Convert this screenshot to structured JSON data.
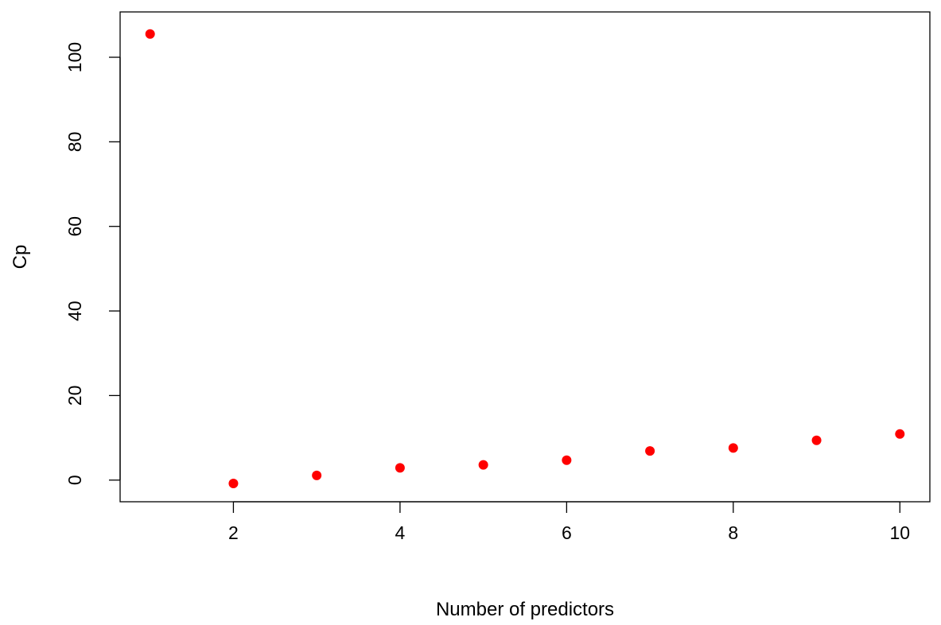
{
  "chart_data": {
    "type": "scatter",
    "title": "",
    "xlabel": "Number of predictors",
    "ylabel": "Cp",
    "xlim": [
      0.64,
      10.36
    ],
    "ylim": [
      -5.12,
      110.72
    ],
    "xticks": [
      2,
      4,
      6,
      8,
      10
    ],
    "yticks": [
      0,
      20,
      40,
      60,
      80,
      100
    ],
    "grid": false,
    "point_color": "#ff0000",
    "series": [
      {
        "x": [
          1,
          2,
          3,
          4,
          5,
          6,
          7,
          8,
          9,
          10
        ],
        "y": [
          105.5,
          -0.8,
          1.1,
          2.9,
          3.6,
          4.7,
          6.9,
          7.6,
          9.4,
          10.9
        ]
      }
    ]
  }
}
